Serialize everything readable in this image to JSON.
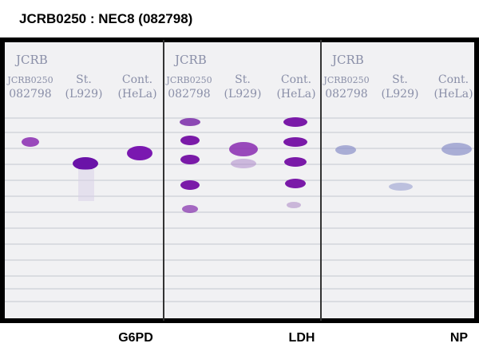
{
  "title": "JCRB0250 : NEC8 (082798)",
  "panels": [
    {
      "header": "JCRB",
      "lanes": [
        {
          "line1": "JCRB0250",
          "line2": "082798"
        },
        {
          "line1": "St.",
          "line2": "(L929)"
        },
        {
          "line1": "Cont.",
          "line2": "(HeLa)"
        }
      ],
      "enzyme": "G6PD"
    },
    {
      "header": "JCRB",
      "lanes": [
        {
          "line1": "JCRB0250",
          "line2": "082798"
        },
        {
          "line1": "St.",
          "line2": "(L929)"
        },
        {
          "line1": "Cont.",
          "line2": "(HeLa)"
        }
      ],
      "enzyme": "LDH"
    },
    {
      "header": "JCRB",
      "lanes": [
        {
          "line1": "JCRB0250",
          "line2": "082798"
        },
        {
          "line1": "St.",
          "line2": "(L929)"
        },
        {
          "line1": "Cont.",
          "line2": "(HeLa)"
        }
      ],
      "enzyme": "NP"
    }
  ]
}
